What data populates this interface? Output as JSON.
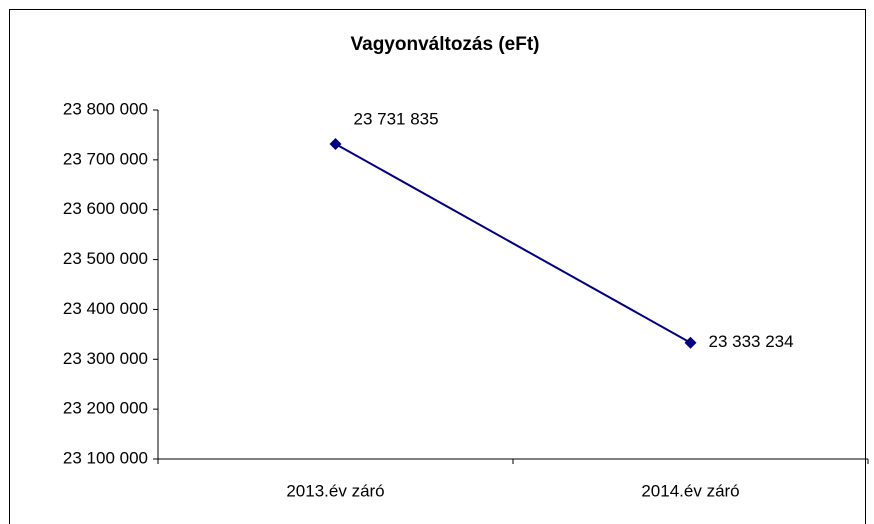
{
  "chart_data": {
    "type": "line",
    "title": "Vagyonváltozás (eFt)",
    "categories": [
      "2013.év záró",
      "2014.év záró"
    ],
    "series": [
      {
        "name": "Vagyonváltozás",
        "color": "#000080",
        "values": [
          23731835,
          23333234
        ],
        "value_labels": [
          "23 731 835",
          "23 333 234"
        ]
      }
    ],
    "ylim": [
      23100000,
      23800000
    ],
    "yticks": [
      {
        "value": 23100000,
        "label": "23 100 000"
      },
      {
        "value": 23200000,
        "label": "23 200 000"
      },
      {
        "value": 23300000,
        "label": "23 300 000"
      },
      {
        "value": 23400000,
        "label": "23 400 000"
      },
      {
        "value": 23500000,
        "label": "23 500 000"
      },
      {
        "value": 23600000,
        "label": "23 600 000"
      },
      {
        "value": 23700000,
        "label": "23 700 000"
      },
      {
        "value": 23800000,
        "label": "23 800 000"
      }
    ],
    "grid": false
  }
}
